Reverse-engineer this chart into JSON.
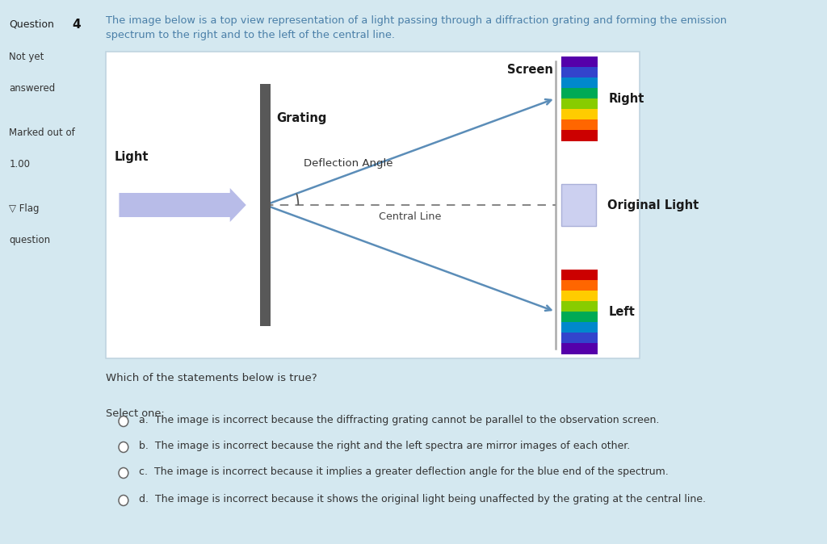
{
  "bg_color": "#d4e8f0",
  "sidebar_color": "#dce8f0",
  "diagram_bg": "#ffffff",
  "text_color": "#333333",
  "blue_text_color": "#4a7fa8",
  "dark_text": "#1a1a1a",
  "line_color": "#5b8db8",
  "arrow_color": "#b0b8e0",
  "grating_color": "#606060",
  "screen_color": "#a0a0a0",
  "dashed_color": "#888888",
  "arc_color": "#555555",
  "description": "The image below is a top view representation of a light passing through a diffraction grating and forming the emission\nspectrum to the right and to the left of the central line.",
  "screen_label": "Screen",
  "grating_label": "Grating",
  "light_label": "Light",
  "deflection_label": "Deflection Angle",
  "central_label": "Central Line",
  "right_label": "Right",
  "left_label": "Left",
  "original_label": "Original Light",
  "question_label": "Which of the statements below is true?",
  "select_label": "Select one:",
  "options": [
    "a.  The image is incorrect because the diffracting grating cannot be parallel to the observation screen.",
    "b.  The image is incorrect because the right and the left spectra are mirror images of each other.",
    "c.  The image is incorrect because it implies a greater deflection angle for the blue end of the spectrum.",
    "d.  The image is incorrect because it shows the original light being unaffected by the grating at the central line."
  ],
  "sidebar_q": "Question",
  "sidebar_qnum": "4",
  "sidebar_items": [
    "Not yet",
    "answered",
    "",
    "Marked out of",
    "1.00",
    "",
    "▽ Flag",
    "question"
  ]
}
